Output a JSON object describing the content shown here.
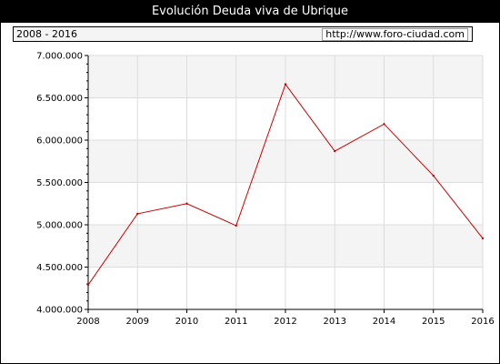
{
  "header": {
    "title": "Evolución Deuda viva de Ubrique",
    "period": "2008 - 2016",
    "source_url": "http://www.foro-ciudad.com"
  },
  "colors": {
    "line": "#cc0000",
    "band": "#f4f4f4",
    "grid": "#dddddd",
    "background": "#ffffff",
    "title_bar": "#000000"
  },
  "chart_data": {
    "type": "line",
    "title": "Evolución Deuda viva de Ubrique",
    "xlabel": "",
    "ylabel": "",
    "x": [
      2008,
      2009,
      2010,
      2011,
      2012,
      2013,
      2014,
      2015,
      2016
    ],
    "x_tick_labels": [
      "2008",
      "2009",
      "2010",
      "2011",
      "2012",
      "2013",
      "2014",
      "2015",
      "2016"
    ],
    "values": [
      4290000,
      5130000,
      5250000,
      4990000,
      6660000,
      5870000,
      6190000,
      5580000,
      4840000
    ],
    "y_ticks": [
      4000000,
      4500000,
      5000000,
      5500000,
      6000000,
      6500000,
      7000000
    ],
    "y_tick_labels": [
      "4.000.000",
      "4.500.000",
      "5.000.000",
      "5.500.000",
      "6.000.000",
      "6.500.000",
      "7.000.000"
    ],
    "ylim": [
      4000000,
      7000000
    ],
    "grid": true,
    "legend": "none"
  }
}
